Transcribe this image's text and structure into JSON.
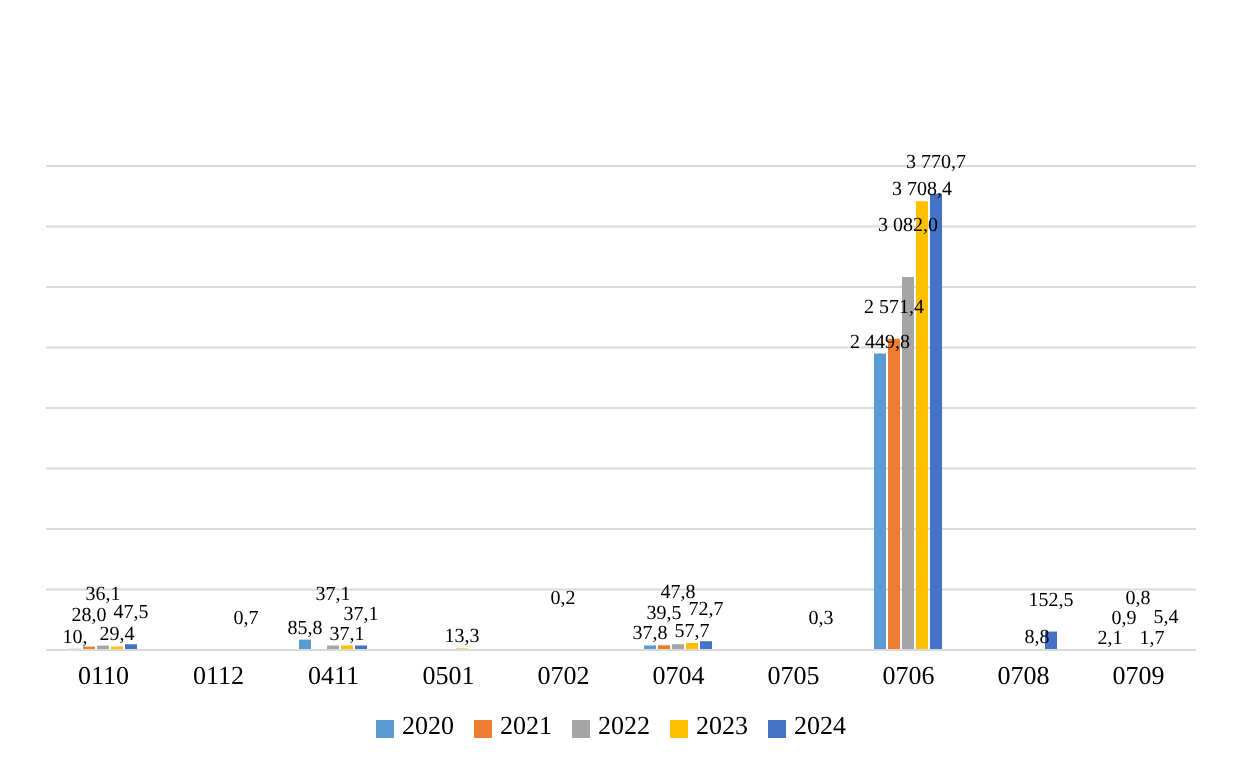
{
  "chart_data": {
    "type": "bar",
    "categories": [
      "0110",
      "0112",
      "0411",
      "0501",
      "0702",
      "0704",
      "0705",
      "0706",
      "0708",
      "0709"
    ],
    "series": [
      {
        "name": "2020",
        "color": "#5b9bd5",
        "values": [
          10,
          null,
          85.8,
          null,
          null,
          37.8,
          null,
          2449.8,
          null,
          2.1
        ],
        "value_labels": [
          "10,",
          null,
          "85,8",
          null,
          null,
          "37,8",
          null,
          "2 449,8",
          null,
          "2,1"
        ]
      },
      {
        "name": "2021",
        "color": "#ed7d31",
        "values": [
          28.0,
          null,
          null,
          null,
          null,
          39.5,
          null,
          2571.4,
          null,
          0.9
        ],
        "value_labels": [
          "28,0",
          null,
          null,
          null,
          null,
          "39,5",
          null,
          "2 571,4",
          null,
          "0,9"
        ]
      },
      {
        "name": "2022",
        "color": "#a5a5a5",
        "values": [
          36.1,
          null,
          37.1,
          null,
          0.2,
          47.8,
          null,
          3082.0,
          null,
          0.8
        ],
        "value_labels": [
          "36,1",
          null,
          "37,1",
          null,
          "0,2",
          "47,8",
          null,
          "3 082,0",
          null,
          "0,8"
        ]
      },
      {
        "name": "2023",
        "color": "#ffc000",
        "values": [
          29.4,
          null,
          37.1,
          13.3,
          null,
          57.7,
          null,
          3708.4,
          8.8,
          1.7
        ],
        "value_labels": [
          "29,4",
          null,
          "37,1",
          "13,3",
          null,
          "57,7",
          null,
          "3 708,4",
          "8,8",
          "1,7"
        ]
      },
      {
        "name": "2024",
        "color": "#4472c4",
        "values": [
          47.5,
          0.7,
          37.1,
          null,
          null,
          72.7,
          0.3,
          3770.7,
          152.5,
          5.4
        ],
        "value_labels": [
          "47,5",
          "0,7",
          "37,1",
          null,
          null,
          "72,7",
          "0,3",
          "3 770,7",
          "152,5",
          "5,4"
        ]
      }
    ],
    "ylim": [
      0,
      4000
    ],
    "tick_labels": "x",
    "grid": "y",
    "legend": "bottom"
  }
}
